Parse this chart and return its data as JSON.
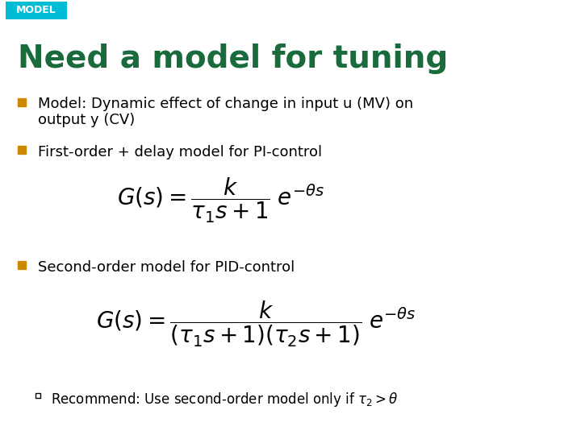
{
  "bg_color": "#ffffff",
  "tag_bg": "#00bcd4",
  "tag_text": "MODEL",
  "tag_text_color": "#ffffff",
  "tag_fontsize": 9,
  "title": "Need a model for tuning",
  "title_color": "#1a6b3c",
  "title_fontsize": 28,
  "bullet_color": "#cc8800",
  "bullet1_line1": "Model: Dynamic effect of change in input u (MV) on",
  "bullet1_line2": "output y (CV)",
  "bullet2": "First-order + delay model for PI-control",
  "eq1": "$G(s) = \\dfrac{k}{\\tau_1 s+1}\\; e^{-\\theta s}$",
  "bullet3": "Second-order model for PID-control",
  "eq2": "$G(s) = \\dfrac{k}{(\\tau_1 s+1)(\\tau_2 s+1)}\\; e^{-\\theta s}$",
  "sub_bullet": "Recommend: Use second-order model only if $\\tau_2>\\theta$",
  "text_color": "#000000",
  "text_fontsize": 13,
  "eq_fontsize": 16
}
